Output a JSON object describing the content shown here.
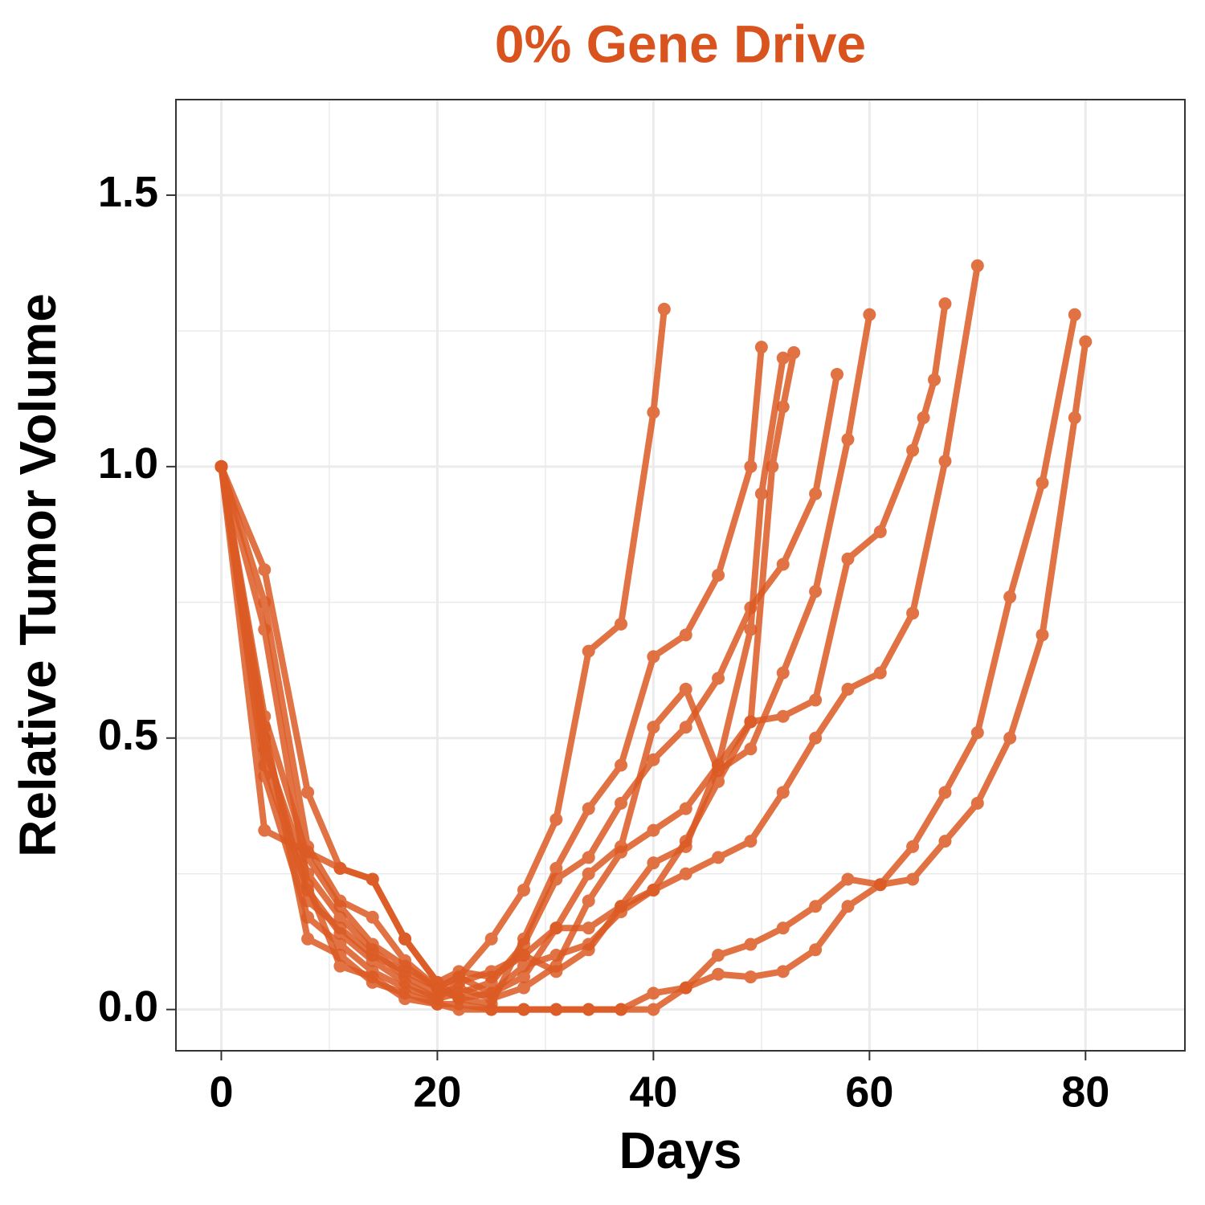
{
  "chart_data": {
    "type": "line",
    "title": "0% Gene Drive",
    "x_label": "Days",
    "y_label": "Relative Tumor Volume",
    "color": "#dc5a23",
    "grid": true,
    "xlim": [
      -4.2,
      89.2
    ],
    "ylim": [
      -0.076,
      1.676
    ],
    "xticks": [
      0,
      20,
      40,
      60,
      80
    ],
    "yticks": [
      {
        "value": 0,
        "label": "0.0"
      },
      0.5,
      {
        "value": 1,
        "label": "1.0"
      },
      1.5
    ],
    "series": [
      {
        "color": "#dc5a23",
        "x": [
          0,
          4,
          8,
          11,
          14,
          17,
          20,
          22,
          25,
          28,
          31,
          34,
          37,
          40,
          41
        ],
        "values": [
          1,
          0.5,
          0.2,
          0.15,
          0.1,
          0.07,
          0.04,
          0.06,
          0.13,
          0.22,
          0.35,
          0.66,
          0.71,
          1.1,
          1.29
        ]
      },
      {
        "color": "#dc5a23",
        "x": [
          0,
          4,
          8,
          11,
          14,
          17,
          20,
          22,
          25,
          28,
          31,
          34,
          37,
          40,
          43,
          46,
          49,
          50
        ],
        "values": [
          1,
          0.81,
          0.4,
          0.26,
          0.24,
          0.13,
          0.05,
          0.02,
          0.01,
          0.13,
          0.26,
          0.37,
          0.45,
          0.65,
          0.69,
          0.8,
          1.0,
          1.22
        ]
      },
      {
        "color": "#dc5a23",
        "x": [
          0,
          4,
          8,
          11,
          14,
          17,
          20,
          22,
          25,
          28,
          31,
          34,
          37,
          40,
          43,
          46,
          49,
          50,
          52
        ],
        "values": [
          1,
          0.54,
          0.28,
          0.19,
          0.12,
          0.08,
          0.04,
          0.02,
          0.03,
          0.06,
          0.15,
          0.15,
          0.19,
          0.27,
          0.3,
          0.45,
          0.7,
          0.95,
          1.2
        ]
      },
      {
        "color": "#dc5a23",
        "x": [
          0,
          4,
          8,
          11,
          14,
          17,
          20,
          22,
          25,
          28,
          31,
          34,
          37,
          40,
          43,
          46,
          49,
          51,
          52,
          53
        ],
        "values": [
          1,
          0.48,
          0.25,
          0.17,
          0.11,
          0.06,
          0.03,
          0.04,
          0.02,
          0.04,
          0.08,
          0.2,
          0.29,
          0.33,
          0.37,
          0.45,
          0.53,
          1.0,
          1.11,
          1.21
        ]
      },
      {
        "color": "#dc5a23",
        "x": [
          0,
          4,
          8,
          11,
          14,
          17,
          20,
          22,
          25,
          28,
          31,
          34,
          37,
          40,
          43,
          46,
          49,
          52,
          55,
          57
        ],
        "values": [
          1,
          0.45,
          0.22,
          0.14,
          0.09,
          0.05,
          0.02,
          0.03,
          0.05,
          0.12,
          0.24,
          0.28,
          0.38,
          0.46,
          0.52,
          0.61,
          0.74,
          0.82,
          0.95,
          1.17
        ]
      },
      {
        "color": "#dc5a23",
        "x": [
          0,
          4,
          8,
          11,
          14,
          17,
          20,
          22,
          25,
          28,
          31,
          34,
          37,
          40,
          43,
          46,
          49,
          52,
          55,
          58,
          60
        ],
        "values": [
          1,
          0.43,
          0.17,
          0.12,
          0.07,
          0.04,
          0.02,
          0.05,
          0.07,
          0.1,
          0.15,
          0.25,
          0.3,
          0.52,
          0.59,
          0.44,
          0.48,
          0.62,
          0.77,
          1.05,
          1.28
        ]
      },
      {
        "color": "#dc5a23",
        "x": [
          0,
          4,
          8,
          11,
          14,
          17,
          20,
          22,
          25,
          28,
          31,
          34,
          37,
          40,
          43,
          46,
          49,
          52,
          55,
          58,
          61,
          64,
          65,
          66,
          67
        ],
        "values": [
          1,
          0.75,
          0.3,
          0.2,
          0.17,
          0.09,
          0.04,
          0.06,
          0.03,
          0.08,
          0.1,
          0.12,
          0.18,
          0.22,
          0.31,
          0.42,
          0.53,
          0.54,
          0.57,
          0.83,
          0.88,
          1.03,
          1.09,
          1.16,
          1.3
        ]
      },
      {
        "color": "#dc5a23",
        "x": [
          0,
          4,
          8,
          11,
          14,
          17,
          20,
          22,
          25,
          28,
          31,
          34,
          37,
          40,
          43,
          46,
          49,
          52,
          55,
          58,
          61,
          64,
          67,
          70
        ],
        "values": [
          1,
          0.33,
          0.29,
          0.26,
          0.24,
          0.13,
          0.05,
          0.07,
          0.06,
          0.1,
          0.07,
          0.11,
          0.19,
          0.22,
          0.25,
          0.28,
          0.31,
          0.4,
          0.5,
          0.59,
          0.62,
          0.73,
          1.01,
          1.37
        ]
      },
      {
        "color": "#dc5a23",
        "x": [
          0,
          4,
          8,
          11,
          14,
          17,
          20,
          22,
          25,
          28,
          31,
          34,
          37,
          40,
          43,
          46,
          49,
          52,
          55,
          58,
          61,
          64,
          67,
          70,
          73,
          76,
          79
        ],
        "values": [
          1,
          0.52,
          0.13,
          0.1,
          0.05,
          0.03,
          0.01,
          0.01,
          0,
          0,
          0,
          0,
          0,
          0.03,
          0.04,
          0.1,
          0.12,
          0.15,
          0.19,
          0.24,
          0.23,
          0.3,
          0.4,
          0.51,
          0.76,
          0.97,
          1.28
        ]
      },
      {
        "color": "#dc5a23",
        "x": [
          0,
          4,
          8,
          11,
          14,
          17,
          20,
          22,
          25,
          28,
          31,
          34,
          37,
          40,
          43,
          46,
          49,
          52,
          55,
          58,
          61,
          64,
          67,
          70,
          73,
          76,
          79,
          80
        ],
        "values": [
          1,
          0.7,
          0.23,
          0.08,
          0.06,
          0.02,
          0.01,
          0,
          0,
          0,
          0,
          0,
          0,
          0,
          0.04,
          0.065,
          0.06,
          0.07,
          0.11,
          0.19,
          0.23,
          0.24,
          0.31,
          0.38,
          0.5,
          0.69,
          1.09,
          1.23
        ]
      }
    ]
  }
}
